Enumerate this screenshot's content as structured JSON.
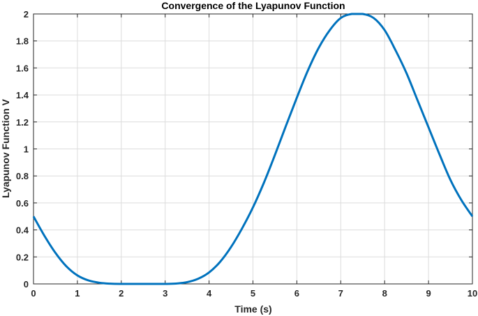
{
  "chart_data": {
    "type": "line",
    "title": "Convergence of the Lyapunov Function",
    "xlabel": "Time (s)",
    "ylabel": "Lyapunov Function V",
    "xlim": [
      0,
      10
    ],
    "ylim": [
      0,
      2
    ],
    "xticks": [
      0,
      1,
      2,
      3,
      4,
      5,
      6,
      7,
      8,
      9,
      10
    ],
    "xtick_labels": [
      "0",
      "1",
      "2",
      "3",
      "4",
      "5",
      "6",
      "7",
      "8",
      "9",
      "10"
    ],
    "yticks": [
      0,
      0.2,
      0.4,
      0.6,
      0.8,
      1,
      1.2,
      1.4,
      1.6,
      1.8,
      2
    ],
    "ytick_labels": [
      "0",
      "0.2",
      "0.4",
      "0.6",
      "0.8",
      "1",
      "1.2",
      "1.4",
      "1.6",
      "1.8",
      "2"
    ],
    "grid": true,
    "series": [
      {
        "color": "#0072BD",
        "x": [
          0,
          0.25,
          0.5,
          0.75,
          1,
          1.25,
          1.5,
          1.75,
          2,
          2.25,
          2.5,
          2.75,
          3,
          3.25,
          3.5,
          3.75,
          4,
          4.25,
          4.5,
          4.75,
          5,
          5.25,
          5.5,
          5.75,
          6,
          6.25,
          6.5,
          6.75,
          7,
          7.25,
          7.5,
          7.75,
          8,
          8.25,
          8.5,
          8.75,
          9,
          9.25,
          9.5,
          9.75,
          10
        ],
        "y": [
          0.5,
          0.356,
          0.23,
          0.13,
          0.063,
          0.026,
          0.0086,
          0.0019,
          0.0,
          0.0,
          0.0,
          0.0,
          0.0,
          0.0027,
          0.013,
          0.038,
          0.085,
          0.163,
          0.273,
          0.41,
          0.567,
          0.75,
          0.955,
          1.17,
          1.38,
          1.58,
          1.75,
          1.88,
          1.97,
          2.0,
          2.0,
          1.97,
          1.88,
          1.73,
          1.56,
          1.36,
          1.16,
          0.96,
          0.77,
          0.62,
          0.5
        ]
      }
    ]
  }
}
